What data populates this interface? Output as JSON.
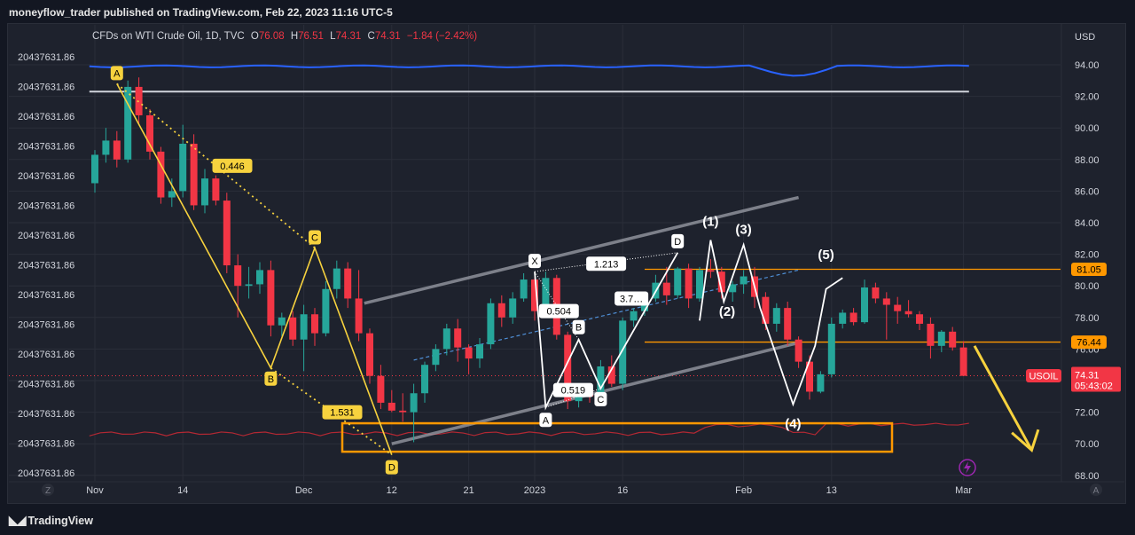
{
  "header": {
    "published_text": "moneyflow_trader published on TradingView.com, Feb 22, 2023 11:16 UTC-5"
  },
  "legend": {
    "symbol_text": "CFDs on WTI Crude Oil, 1D, TVC",
    "open_label": "O",
    "open_value": "76.08",
    "high_label": "H",
    "high_value": "76.51",
    "low_label": "L",
    "low_value": "74.31",
    "close_label": "C",
    "close_value": "74.31",
    "change": "−1.84 (−2.42%)"
  },
  "footer": {
    "brand": "TradingView"
  },
  "colors": {
    "background": "#1e222d",
    "up": "#26a69a",
    "down": "#f23645",
    "pattern": "#f7d23e",
    "channel": "#9598a1",
    "orange": "#ff9800",
    "blue_line": "#2962ff",
    "white": "#ffffff"
  },
  "chart_data": {
    "type": "candlestick",
    "currency_label": "USD",
    "y_ticks": [
      "94.00",
      "92.00",
      "90.00",
      "88.00",
      "86.00",
      "84.00",
      "82.00",
      "80.00",
      "78.00",
      "76.00",
      "74.00",
      "72.00",
      "70.00",
      "68.00"
    ],
    "ylim": [
      67.8,
      96.2
    ],
    "x_labels": [
      {
        "text": "Nov",
        "i": 0
      },
      {
        "text": "14",
        "i": 8
      },
      {
        "text": "Dec",
        "i": 19
      },
      {
        "text": "12",
        "i": 27
      },
      {
        "text": "21",
        "i": 34
      },
      {
        "text": "2023",
        "i": 40
      },
      {
        "text": "16",
        "i": 48
      },
      {
        "text": "Feb",
        "i": 59
      },
      {
        "text": "13",
        "i": 67
      },
      {
        "text": "Mar",
        "i": 79
      }
    ],
    "left_scale_labels": [
      "20437631.86",
      "20437631.86",
      "20437631.86",
      "20437631.86",
      "20437631.86",
      "20437631.86",
      "20437631.86",
      "20437631.86",
      "20437631.86",
      "20437631.86",
      "20437631.86",
      "20437631.86",
      "20437631.86",
      "20437631.86",
      "20437631.86"
    ],
    "axis_buttons": {
      "left": "Z",
      "right": "A"
    },
    "candles": [
      {
        "o": 86.5,
        "h": 88.6,
        "l": 85.9,
        "c": 88.3
      },
      {
        "o": 88.3,
        "h": 90.0,
        "l": 87.8,
        "c": 89.2
      },
      {
        "o": 89.2,
        "h": 89.8,
        "l": 87.5,
        "c": 88.0
      },
      {
        "o": 88.0,
        "h": 93.0,
        "l": 87.8,
        "c": 92.6
      },
      {
        "o": 92.6,
        "h": 93.2,
        "l": 90.2,
        "c": 90.8
      },
      {
        "o": 90.8,
        "h": 91.2,
        "l": 88.0,
        "c": 88.5
      },
      {
        "o": 88.5,
        "h": 88.8,
        "l": 85.2,
        "c": 85.6
      },
      {
        "o": 85.6,
        "h": 86.8,
        "l": 85.0,
        "c": 86.0
      },
      {
        "o": 86.0,
        "h": 90.2,
        "l": 85.6,
        "c": 89.0
      },
      {
        "o": 89.0,
        "h": 89.6,
        "l": 84.8,
        "c": 85.1
      },
      {
        "o": 85.1,
        "h": 87.4,
        "l": 84.6,
        "c": 86.8
      },
      {
        "o": 86.8,
        "h": 87.0,
        "l": 85.1,
        "c": 85.4
      },
      {
        "o": 85.4,
        "h": 85.9,
        "l": 80.8,
        "c": 81.3
      },
      {
        "o": 81.3,
        "h": 82.0,
        "l": 78.0,
        "c": 80.0
      },
      {
        "o": 80.0,
        "h": 81.2,
        "l": 79.2,
        "c": 80.1
      },
      {
        "o": 80.1,
        "h": 81.5,
        "l": 79.5,
        "c": 81.0
      },
      {
        "o": 81.0,
        "h": 81.6,
        "l": 76.8,
        "c": 77.5
      },
      {
        "o": 77.5,
        "h": 78.3,
        "l": 76.8,
        "c": 78.0
      },
      {
        "o": 78.0,
        "h": 78.4,
        "l": 76.2,
        "c": 76.6
      },
      {
        "o": 76.6,
        "h": 78.8,
        "l": 74.6,
        "c": 78.2
      },
      {
        "o": 78.2,
        "h": 78.6,
        "l": 76.2,
        "c": 77.0
      },
      {
        "o": 77.0,
        "h": 80.3,
        "l": 76.8,
        "c": 79.8
      },
      {
        "o": 79.8,
        "h": 81.6,
        "l": 79.2,
        "c": 81.1
      },
      {
        "o": 81.1,
        "h": 81.5,
        "l": 78.6,
        "c": 79.2
      },
      {
        "o": 79.2,
        "h": 81.0,
        "l": 76.5,
        "c": 77.0
      },
      {
        "o": 77.0,
        "h": 77.3,
        "l": 73.8,
        "c": 74.3
      },
      {
        "o": 74.3,
        "h": 75.0,
        "l": 72.2,
        "c": 72.6
      },
      {
        "o": 72.6,
        "h": 73.4,
        "l": 72.0,
        "c": 72.1
      },
      {
        "o": 72.1,
        "h": 73.2,
        "l": 71.4,
        "c": 72.0
      },
      {
        "o": 72.0,
        "h": 73.8,
        "l": 70.1,
        "c": 73.2
      },
      {
        "o": 73.2,
        "h": 75.2,
        "l": 72.6,
        "c": 75.0
      },
      {
        "o": 75.0,
        "h": 76.3,
        "l": 74.6,
        "c": 76.0
      },
      {
        "o": 76.0,
        "h": 77.6,
        "l": 75.6,
        "c": 77.3
      },
      {
        "o": 77.3,
        "h": 77.9,
        "l": 75.2,
        "c": 76.1
      },
      {
        "o": 76.1,
        "h": 76.3,
        "l": 74.4,
        "c": 75.4
      },
      {
        "o": 75.4,
        "h": 76.7,
        "l": 74.8,
        "c": 76.3
      },
      {
        "o": 76.3,
        "h": 79.2,
        "l": 76.0,
        "c": 78.9
      },
      {
        "o": 78.9,
        "h": 79.4,
        "l": 77.4,
        "c": 78.0
      },
      {
        "o": 78.0,
        "h": 79.6,
        "l": 77.6,
        "c": 79.2
      },
      {
        "o": 79.2,
        "h": 80.8,
        "l": 79.0,
        "c": 80.4
      },
      {
        "o": 80.4,
        "h": 80.6,
        "l": 77.8,
        "c": 78.4
      },
      {
        "o": 78.4,
        "h": 80.9,
        "l": 78.1,
        "c": 80.5
      },
      {
        "o": 80.5,
        "h": 80.7,
        "l": 76.6,
        "c": 76.9
      },
      {
        "o": 76.9,
        "h": 77.1,
        "l": 72.2,
        "c": 72.7
      },
      {
        "o": 72.7,
        "h": 73.6,
        "l": 72.3,
        "c": 73.4
      },
      {
        "o": 73.4,
        "h": 73.8,
        "l": 72.6,
        "c": 73.0
      },
      {
        "o": 73.0,
        "h": 75.3,
        "l": 72.9,
        "c": 74.9
      },
      {
        "o": 74.9,
        "h": 75.6,
        "l": 73.6,
        "c": 73.8
      },
      {
        "o": 73.8,
        "h": 78.0,
        "l": 73.4,
        "c": 77.8
      },
      {
        "o": 77.8,
        "h": 78.6,
        "l": 77.4,
        "c": 78.4
      },
      {
        "o": 78.4,
        "h": 79.4,
        "l": 78.1,
        "c": 79.2
      },
      {
        "o": 79.2,
        "h": 80.7,
        "l": 79.0,
        "c": 80.2
      },
      {
        "o": 80.2,
        "h": 81.2,
        "l": 78.8,
        "c": 79.4
      },
      {
        "o": 79.4,
        "h": 81.2,
        "l": 79.2,
        "c": 81.1
      },
      {
        "o": 81.1,
        "h": 81.4,
        "l": 78.6,
        "c": 79.2
      },
      {
        "o": 79.2,
        "h": 81.2,
        "l": 79.0,
        "c": 81.0
      },
      {
        "o": 81.0,
        "h": 81.7,
        "l": 80.5,
        "c": 80.9
      },
      {
        "o": 80.9,
        "h": 81.2,
        "l": 79.2,
        "c": 79.6
      },
      {
        "o": 79.6,
        "h": 80.3,
        "l": 79.0,
        "c": 80.1
      },
      {
        "o": 80.1,
        "h": 81.0,
        "l": 79.5,
        "c": 80.6
      },
      {
        "o": 80.6,
        "h": 81.2,
        "l": 78.6,
        "c": 79.3
      },
      {
        "o": 79.3,
        "h": 79.6,
        "l": 77.2,
        "c": 77.6
      },
      {
        "o": 77.6,
        "h": 78.9,
        "l": 77.1,
        "c": 78.6
      },
      {
        "o": 78.6,
        "h": 79.0,
        "l": 76.2,
        "c": 76.6
      },
      {
        "o": 76.6,
        "h": 76.8,
        "l": 74.8,
        "c": 75.2
      },
      {
        "o": 75.2,
        "h": 75.6,
        "l": 72.8,
        "c": 73.3
      },
      {
        "o": 73.3,
        "h": 74.6,
        "l": 73.2,
        "c": 74.4
      },
      {
        "o": 74.4,
        "h": 78.0,
        "l": 74.2,
        "c": 77.6
      },
      {
        "o": 77.6,
        "h": 78.5,
        "l": 77.3,
        "c": 78.3
      },
      {
        "o": 78.3,
        "h": 78.6,
        "l": 77.5,
        "c": 77.7
      },
      {
        "o": 77.7,
        "h": 80.4,
        "l": 77.6,
        "c": 79.9
      },
      {
        "o": 79.9,
        "h": 80.2,
        "l": 78.9,
        "c": 79.2
      },
      {
        "o": 79.2,
        "h": 79.6,
        "l": 76.6,
        "c": 78.8
      },
      {
        "o": 78.8,
        "h": 79.3,
        "l": 77.6,
        "c": 78.4
      },
      {
        "o": 78.4,
        "h": 79.1,
        "l": 78.0,
        "c": 78.2
      },
      {
        "o": 78.2,
        "h": 78.4,
        "l": 77.2,
        "c": 77.6
      },
      {
        "o": 77.6,
        "h": 78.0,
        "l": 75.4,
        "c": 76.2
      },
      {
        "o": 76.2,
        "h": 77.2,
        "l": 75.8,
        "c": 77.1
      },
      {
        "o": 77.1,
        "h": 77.4,
        "l": 75.9,
        "c": 76.1
      },
      {
        "o": 76.1,
        "h": 76.5,
        "l": 74.3,
        "c": 74.3
      }
    ],
    "horizontal_levels": [
      {
        "value": 81.05,
        "label": "81.05",
        "color": "#ff9800"
      },
      {
        "value": 76.44,
        "label": "76.44",
        "color": "#ff9800"
      }
    ],
    "current_price": {
      "value": 74.31,
      "symbol": "USOIL",
      "price_label": "74.31",
      "countdown": "05:43:02"
    },
    "white_level": 92.3,
    "harmonic_abcd": {
      "points": [
        {
          "label": "A",
          "i": 2,
          "v": 92.8
        },
        {
          "label": "B",
          "i": 16,
          "v": 74.8
        },
        {
          "label": "C",
          "i": 20,
          "v": 82.4
        },
        {
          "label": "D",
          "i": 27,
          "v": 69.3
        }
      ],
      "ratios": [
        {
          "text": "0.446",
          "i": 12.5,
          "v": 87.6
        },
        {
          "text": "1.531",
          "i": 22.5,
          "v": 72.0
        }
      ]
    },
    "xabcd": {
      "points": [
        {
          "label": "X",
          "i": 40,
          "v": 80.9
        },
        {
          "label": "A",
          "i": 41,
          "v": 72.3
        },
        {
          "label": "B",
          "i": 44,
          "v": 76.6
        },
        {
          "label": "C",
          "i": 46,
          "v": 73.5
        },
        {
          "label": "D",
          "i": 53,
          "v": 82.1
        }
      ],
      "ratios": [
        {
          "text": "1.213",
          "i": 46.5,
          "v": 81.4
        },
        {
          "text": "0.504",
          "i": 42.2,
          "v": 78.4
        },
        {
          "text": "3.7…",
          "i": 48.8,
          "v": 79.2
        },
        {
          "text": "0.519",
          "i": 43.5,
          "v": 73.4
        }
      ]
    },
    "elliott": [
      {
        "label": "(1)",
        "i": 56,
        "v": 83.8
      },
      {
        "label": "(2)",
        "i": 57.5,
        "v": 78.1
      },
      {
        "label": "(3)",
        "i": 59,
        "v": 83.3
      },
      {
        "label": "(4)",
        "i": 63.5,
        "v": 71.0
      },
      {
        "label": "(5)",
        "i": 66.5,
        "v": 81.7
      }
    ],
    "target_box": {
      "i0": 22.5,
      "i1": 72.5,
      "v0": 69.5,
      "v1": 71.3,
      "color": "#ff9800"
    }
  }
}
